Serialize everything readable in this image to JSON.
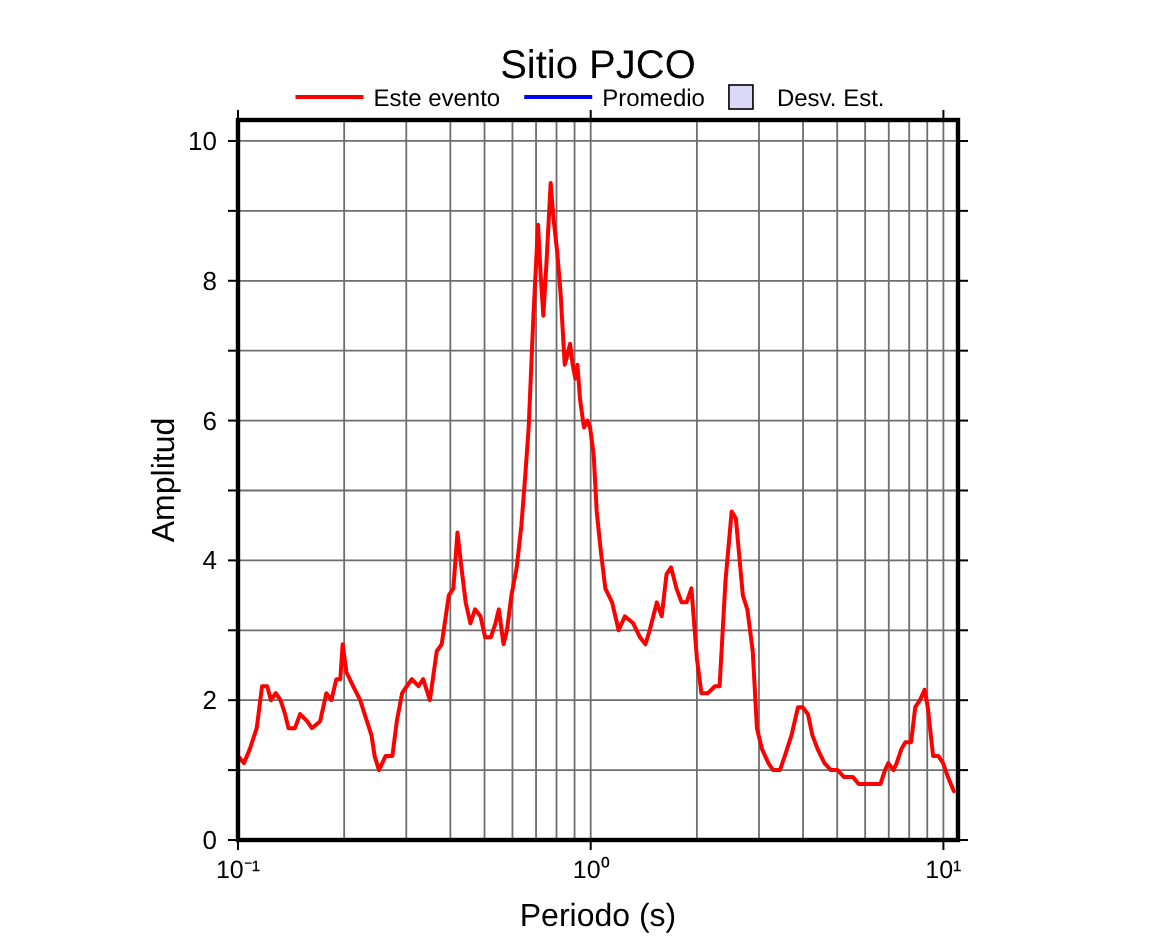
{
  "chart_data": {
    "type": "line",
    "title": "Sitio PJCO",
    "xlabel": "Periodo (s)",
    "ylabel": "Amplitud",
    "log": "x",
    "xlim": [
      0.1,
      11
    ],
    "ylim": [
      0,
      10.3
    ],
    "xticks": [
      {
        "value": 0.1,
        "label": "10⁻¹"
      },
      {
        "value": 0.2,
        "label": null
      },
      {
        "value": 0.3,
        "label": null
      },
      {
        "value": 0.4,
        "label": null
      },
      {
        "value": 0.5,
        "label": null
      },
      {
        "value": 0.6,
        "label": null
      },
      {
        "value": 0.7,
        "label": null
      },
      {
        "value": 0.8,
        "label": null
      },
      {
        "value": 0.9,
        "label": null
      },
      {
        "value": 1,
        "label": "10⁰"
      },
      {
        "value": 2,
        "label": null
      },
      {
        "value": 3,
        "label": null
      },
      {
        "value": 4,
        "label": null
      },
      {
        "value": 5,
        "label": null
      },
      {
        "value": 6,
        "label": null
      },
      {
        "value": 7,
        "label": null
      },
      {
        "value": 8,
        "label": null
      },
      {
        "value": 9,
        "label": null
      },
      {
        "value": 10,
        "label": "10¹"
      }
    ],
    "yticks": [
      0,
      {
        "value": 1,
        "label": null
      },
      2,
      {
        "value": 3,
        "label": null
      },
      4,
      {
        "value": 5,
        "label": null
      },
      6,
      {
        "value": 7,
        "label": null
      },
      8,
      {
        "value": 9,
        "label": null
      },
      10
    ],
    "grid": true,
    "legend": "top",
    "series": [
      {
        "name": "Este evento",
        "color": "#ff0000",
        "x": [
          0.1,
          0.104,
          0.108,
          0.113,
          0.117,
          0.121,
          0.124,
          0.128,
          0.132,
          0.136,
          0.139,
          0.145,
          0.15,
          0.157,
          0.162,
          0.171,
          0.178,
          0.184,
          0.19,
          0.195,
          0.198,
          0.203,
          0.212,
          0.222,
          0.232,
          0.239,
          0.244,
          0.251,
          0.262,
          0.274,
          0.282,
          0.292,
          0.301,
          0.311,
          0.325,
          0.335,
          0.35,
          0.366,
          0.378,
          0.396,
          0.408,
          0.419,
          0.43,
          0.442,
          0.456,
          0.47,
          0.487,
          0.502,
          0.521,
          0.537,
          0.549,
          0.566,
          0.579,
          0.596,
          0.617,
          0.636,
          0.652,
          0.667,
          0.688,
          0.709,
          0.721,
          0.734,
          0.75,
          0.77,
          0.784,
          0.804,
          0.822,
          0.844,
          0.855,
          0.874,
          0.889,
          0.905,
          0.917,
          0.933,
          0.957,
          0.979,
          0.996,
          1.02,
          1.04,
          1.07,
          1.1,
          1.15,
          1.2,
          1.25,
          1.32,
          1.38,
          1.43,
          1.47,
          1.54,
          1.59,
          1.64,
          1.69,
          1.75,
          1.81,
          1.87,
          1.93,
          2.0,
          2.06,
          2.15,
          2.25,
          2.32,
          2.41,
          2.51,
          2.58,
          2.7,
          2.78,
          2.88,
          2.96,
          3.06,
          3.19,
          3.29,
          3.44,
          3.55,
          3.71,
          3.87,
          3.99,
          4.13,
          4.25,
          4.4,
          4.6,
          4.8,
          5.01,
          5.23,
          5.54,
          5.75,
          6.03,
          6.27,
          6.63,
          6.83,
          6.98,
          7.22,
          7.37,
          7.6,
          7.8,
          8.1,
          8.32,
          8.58,
          8.84,
          9.03,
          9.35,
          9.68,
          9.98,
          10.3,
          10.7
        ],
        "values": [
          1.2,
          1.1,
          1.3,
          1.6,
          2.2,
          2.2,
          2.0,
          2.1,
          2.0,
          1.8,
          1.6,
          1.6,
          1.8,
          1.7,
          1.6,
          1.7,
          2.1,
          2.0,
          2.3,
          2.3,
          2.8,
          2.4,
          2.2,
          2.0,
          1.7,
          1.5,
          1.2,
          1.0,
          1.2,
          1.2,
          1.7,
          2.1,
          2.2,
          2.3,
          2.2,
          2.3,
          2.0,
          2.7,
          2.8,
          3.5,
          3.6,
          4.4,
          3.9,
          3.4,
          3.1,
          3.3,
          3.2,
          2.9,
          2.9,
          3.1,
          3.3,
          2.8,
          3.0,
          3.5,
          3.9,
          4.5,
          5.2,
          5.9,
          7.5,
          8.8,
          8.1,
          7.5,
          8.3,
          9.4,
          8.9,
          8.4,
          7.8,
          6.8,
          6.9,
          7.1,
          6.8,
          6.6,
          6.8,
          6.3,
          5.9,
          6.0,
          5.9,
          5.5,
          4.7,
          4.1,
          3.6,
          3.4,
          3.0,
          3.2,
          3.1,
          2.9,
          2.8,
          3.0,
          3.4,
          3.2,
          3.8,
          3.9,
          3.6,
          3.4,
          3.4,
          3.6,
          2.6,
          2.1,
          2.1,
          2.2,
          2.2,
          3.7,
          4.7,
          4.6,
          3.5,
          3.3,
          2.7,
          1.6,
          1.3,
          1.1,
          1.0,
          1.0,
          1.2,
          1.5,
          1.9,
          1.9,
          1.8,
          1.5,
          1.3,
          1.1,
          1.0,
          1.0,
          0.9,
          0.9,
          0.8,
          0.8,
          0.8,
          0.8,
          1.0,
          1.1,
          1.0,
          1.1,
          1.3,
          1.4,
          1.4,
          1.9,
          2.0,
          2.15,
          1.9,
          1.2,
          1.2,
          1.1,
          0.9,
          0.7
        ]
      },
      {
        "name": "Promedio",
        "color": "#0000ff"
      },
      {
        "name": "Desv. Est.",
        "type": "area",
        "color": "#dadaf8"
      }
    ]
  }
}
